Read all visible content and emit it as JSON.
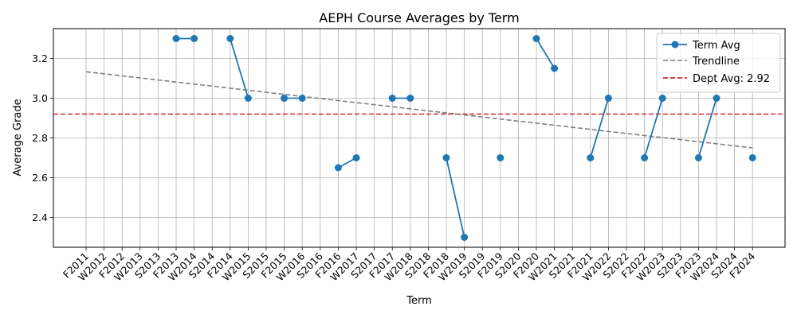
{
  "chart_data": {
    "type": "line",
    "title": "AEPH Course Averages by Term",
    "xlabel": "Term",
    "ylabel": "Average Grade",
    "categories": [
      "F2011",
      "W2012",
      "F2012",
      "W2013",
      "S2013",
      "F2013",
      "W2014",
      "S2014",
      "F2014",
      "W2015",
      "S2015",
      "F2015",
      "W2016",
      "S2016",
      "F2016",
      "W2017",
      "S2017",
      "F2017",
      "W2018",
      "S2018",
      "F2018",
      "W2019",
      "S2019",
      "F2019",
      "S2020",
      "F2020",
      "W2021",
      "S2021",
      "F2021",
      "W2022",
      "S2022",
      "F2022",
      "W2023",
      "S2023",
      "F2023",
      "W2024",
      "S2024",
      "F2024"
    ],
    "ylim": [
      2.25,
      3.35
    ],
    "yticks": [
      "2.4",
      "2.6",
      "2.8",
      "3.0",
      "3.2"
    ],
    "grid": true,
    "legend_position": "top-right",
    "series": [
      {
        "name": "Term Avg",
        "color": "#1f77b4",
        "style": "solid-with-markers",
        "values": [
          null,
          null,
          null,
          null,
          null,
          3.3,
          3.3,
          null,
          3.3,
          3.0,
          null,
          3.0,
          3.0,
          null,
          2.65,
          2.7,
          null,
          3.0,
          3.0,
          null,
          2.7,
          2.3,
          null,
          2.7,
          null,
          3.3,
          3.15,
          null,
          2.7,
          3.0,
          null,
          2.7,
          3.0,
          null,
          2.7,
          3.0,
          null,
          2.7
        ]
      },
      {
        "name": "Trendline",
        "color": "#808080",
        "style": "dashed",
        "x_start": "F2011",
        "x_end": "F2024",
        "y_start": 3.133,
        "y_end": 2.75
      },
      {
        "name": "Dept Avg: 2.92",
        "color": "#d62728",
        "style": "dashed-horizontal",
        "value": 2.92
      }
    ]
  }
}
